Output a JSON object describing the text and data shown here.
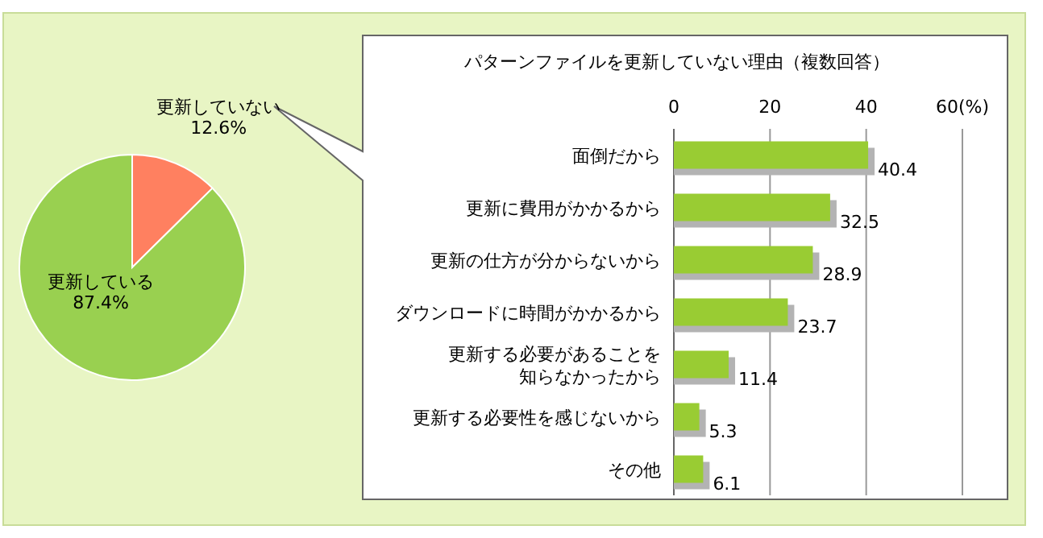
{
  "chart_data": [
    {
      "type": "pie",
      "categories": [
        "更新していない",
        "更新している"
      ],
      "values": [
        12.6,
        87.4
      ],
      "colors": [
        "#ff8060",
        "#99d050"
      ],
      "value_labels": [
        "12.6%",
        "87.4%"
      ]
    },
    {
      "type": "bar",
      "orientation": "horizontal",
      "title": "パターンファイルを更新していない理由（複数回答）",
      "categories": [
        "面倒だから",
        "更新に費用がかかるから",
        "更新の仕方が分からないから",
        "ダウンロードに時間がかかるから",
        "更新する必要があることを知らなかったから",
        "更新する必要性を感じないから",
        "その他"
      ],
      "values": [
        40.4,
        32.5,
        28.9,
        23.7,
        11.4,
        5.3,
        6.1
      ],
      "color": "#99cc33",
      "xlim": [
        0,
        60
      ],
      "xticks": [
        0,
        20,
        40,
        {
          "value": 60,
          "label": "60(%)"
        }
      ],
      "grid": "x",
      "data_labels": true
    }
  ]
}
